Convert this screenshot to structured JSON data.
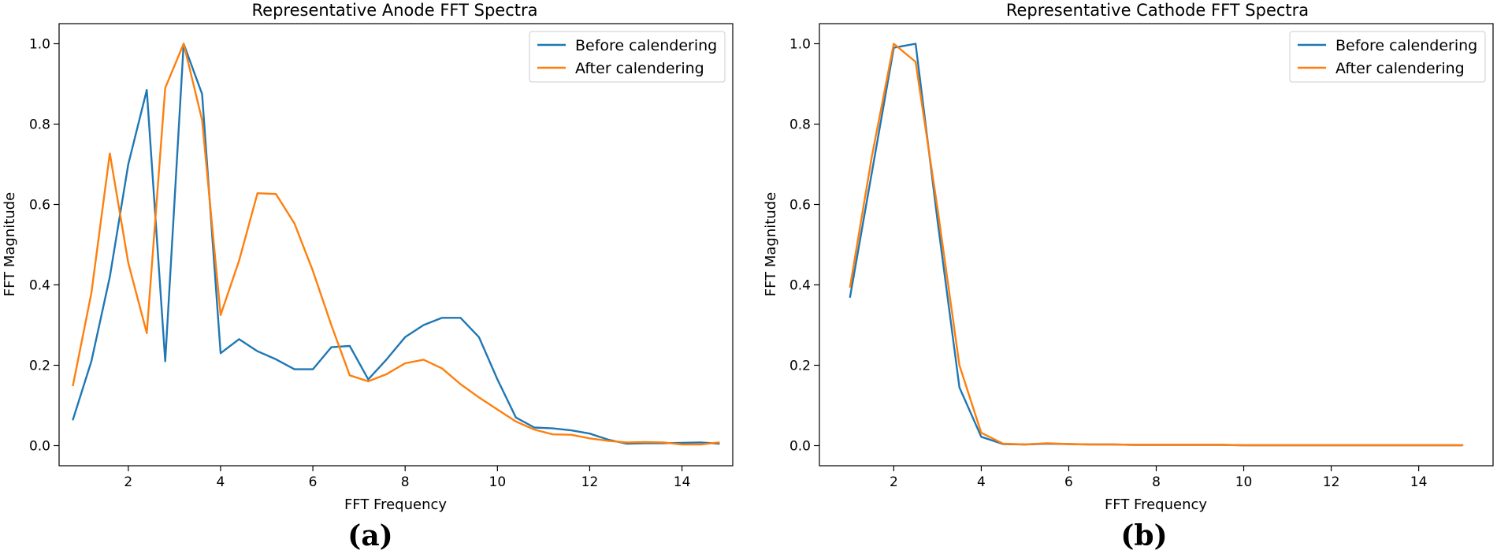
{
  "chart_data": [
    {
      "type": "line",
      "title": "Representative Anode FFT Spectra",
      "xlabel": "FFT Frequency",
      "ylabel": "FFT Magnitude",
      "panel_label": "(a)",
      "xlim": [
        0.5,
        15.1
      ],
      "ylim": [
        -0.05,
        1.05
      ],
      "xticks": [
        2,
        4,
        6,
        8,
        10,
        12,
        14
      ],
      "yticks": [
        0.0,
        0.2,
        0.4,
        0.6,
        0.8,
        1.0
      ],
      "ytick_labels": [
        "0.0",
        "0.2",
        "0.4",
        "0.6",
        "0.8",
        "1.0"
      ],
      "legend": "top-right",
      "grid": false,
      "series": [
        {
          "name": "Before calendering",
          "color": "#1f77b4",
          "x": [
            0.8,
            1.2,
            1.6,
            2.0,
            2.4,
            2.8,
            3.2,
            3.6,
            4.0,
            4.4,
            4.8,
            5.2,
            5.6,
            6.0,
            6.4,
            6.8,
            7.2,
            7.6,
            8.0,
            8.4,
            8.8,
            9.2,
            9.6,
            10.0,
            10.4,
            10.8,
            11.2,
            11.6,
            12.0,
            12.4,
            12.8,
            13.2,
            13.6,
            14.0,
            14.4,
            14.8
          ],
          "y": [
            0.065,
            0.21,
            0.42,
            0.7,
            0.885,
            0.21,
            1.0,
            0.875,
            0.23,
            0.265,
            0.235,
            0.215,
            0.19,
            0.19,
            0.245,
            0.248,
            0.165,
            0.215,
            0.27,
            0.3,
            0.318,
            0.318,
            0.27,
            0.165,
            0.07,
            0.045,
            0.043,
            0.038,
            0.03,
            0.015,
            0.005,
            0.006,
            0.006,
            0.007,
            0.008,
            0.005
          ]
        },
        {
          "name": "After calendering",
          "color": "#ff7f0e",
          "x": [
            0.8,
            1.2,
            1.6,
            2.0,
            2.4,
            2.8,
            3.2,
            3.6,
            4.0,
            4.4,
            4.8,
            5.2,
            5.6,
            6.0,
            6.4,
            6.8,
            7.2,
            7.6,
            8.0,
            8.4,
            8.8,
            9.2,
            9.6,
            10.0,
            10.4,
            10.8,
            11.2,
            11.6,
            12.0,
            12.4,
            12.8,
            13.2,
            13.6,
            14.0,
            14.4,
            14.8
          ],
          "y": [
            0.15,
            0.38,
            0.727,
            0.455,
            0.28,
            0.89,
            1.0,
            0.81,
            0.325,
            0.46,
            0.628,
            0.626,
            0.553,
            0.435,
            0.3,
            0.175,
            0.16,
            0.178,
            0.205,
            0.214,
            0.192,
            0.153,
            0.12,
            0.09,
            0.06,
            0.04,
            0.028,
            0.027,
            0.018,
            0.012,
            0.008,
            0.009,
            0.008,
            0.003,
            0.003,
            0.008
          ]
        }
      ]
    },
    {
      "type": "line",
      "title": "Representative Cathode FFT Spectra",
      "xlabel": "FFT Frequency",
      "ylabel": "FFT Magnitude",
      "panel_label": "(b)",
      "xlim": [
        0.3,
        15.7
      ],
      "ylim": [
        -0.05,
        1.05
      ],
      "xticks": [
        2,
        4,
        6,
        8,
        10,
        12,
        14
      ],
      "yticks": [
        0.0,
        0.2,
        0.4,
        0.6,
        0.8,
        1.0
      ],
      "ytick_labels": [
        "0.0",
        "0.2",
        "0.4",
        "0.6",
        "0.8",
        "1.0"
      ],
      "legend": "top-right",
      "grid": false,
      "series": [
        {
          "name": "Before calendering",
          "color": "#1f77b4",
          "x": [
            1.0,
            1.5,
            2.0,
            2.5,
            3.0,
            3.5,
            4.0,
            4.5,
            5.0,
            5.5,
            6.0,
            6.5,
            7.0,
            7.5,
            8.0,
            8.5,
            9.0,
            9.5,
            10.0,
            10.5,
            11.0,
            11.5,
            12.0,
            12.5,
            13.0,
            13.5,
            14.0,
            14.5,
            15.0
          ],
          "y": [
            0.37,
            0.68,
            0.99,
            1.0,
            0.56,
            0.145,
            0.022,
            0.004,
            0.003,
            0.005,
            0.004,
            0.003,
            0.003,
            0.002,
            0.002,
            0.002,
            0.002,
            0.002,
            0.001,
            0.001,
            0.001,
            0.001,
            0.001,
            0.001,
            0.001,
            0.001,
            0.001,
            0.001,
            0.001
          ]
        },
        {
          "name": "After calendering",
          "color": "#ff7f0e",
          "x": [
            1.0,
            1.5,
            2.0,
            2.5,
            3.0,
            3.5,
            4.0,
            4.5,
            5.0,
            5.5,
            6.0,
            6.5,
            7.0,
            7.5,
            8.0,
            8.5,
            9.0,
            9.5,
            10.0,
            10.5,
            11.0,
            11.5,
            12.0,
            12.5,
            13.0,
            13.5,
            14.0,
            14.5,
            15.0
          ],
          "y": [
            0.395,
            0.72,
            1.0,
            0.955,
            0.59,
            0.2,
            0.032,
            0.005,
            0.003,
            0.006,
            0.004,
            0.003,
            0.003,
            0.002,
            0.002,
            0.002,
            0.002,
            0.002,
            0.001,
            0.001,
            0.001,
            0.001,
            0.001,
            0.001,
            0.001,
            0.001,
            0.001,
            0.001,
            0.001
          ]
        }
      ]
    }
  ]
}
